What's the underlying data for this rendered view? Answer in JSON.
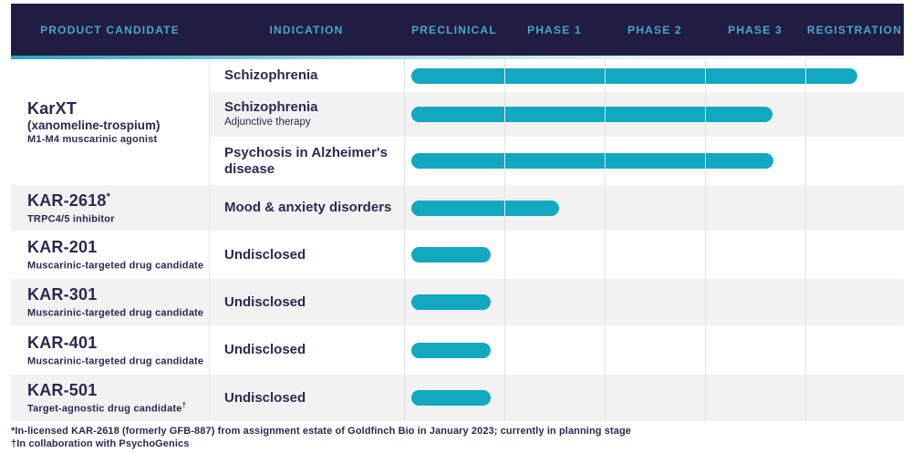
{
  "header": {
    "columns": [
      "PRODUCT CANDIDATE",
      "INDICATION",
      "PRECLINICAL",
      "PHASE 1",
      "PHASE 2",
      "PHASE 3",
      "REGISTRATION"
    ]
  },
  "colors": {
    "header_bg": "#211c41",
    "header_text": "#45a7cb",
    "bar_teal": "#12a8c0",
    "row_stripe": "#f2f2f3",
    "body_text": "#2b2950",
    "gridline": "#e3e3e6",
    "accent_gradient_start": "#2aa6bd"
  },
  "karxt": {
    "name": "KarXT",
    "sub1": "(xanomeline-trospium)",
    "sub2": "M1-M4 muscarinic agonist",
    "indications": [
      {
        "label": "Schizophrenia",
        "sub": "",
        "phase_reached": "Registration",
        "bar_pct": 89.2
      },
      {
        "label": "Schizophrenia",
        "sub": "Adjunctive therapy",
        "phase_reached": "Phase 3",
        "bar_pct": 72.3
      },
      {
        "label": "Psychosis in Alzheimer's disease",
        "sub": "",
        "phase_reached": "Phase 3",
        "bar_pct": 72.4
      }
    ]
  },
  "rows": [
    {
      "name": "KAR-2618",
      "sup": "*",
      "sub": "TRPC4/5 inhibitor",
      "sub_sup": "",
      "indication": "Mood & anxiety disorders",
      "phase_reached": "Phase 1",
      "bar_pct": 29.6
    },
    {
      "name": "KAR-201",
      "sup": "",
      "sub": "Muscarinic-targeted drug candidate",
      "sub_sup": "",
      "indication": "Undisclosed",
      "phase_reached": "Preclinical",
      "bar_pct": 15.9
    },
    {
      "name": "KAR-301",
      "sup": "",
      "sub": "Muscarinic-targeted drug candidate",
      "sub_sup": "",
      "indication": "Undisclosed",
      "phase_reached": "Preclinical",
      "bar_pct": 15.9
    },
    {
      "name": "KAR-401",
      "sup": "",
      "sub": "Muscarinic-targeted drug candidate",
      "sub_sup": "",
      "indication": "Undisclosed",
      "phase_reached": "Preclinical",
      "bar_pct": 15.9
    },
    {
      "name": "KAR-501",
      "sup": "",
      "sub": "Target-agnostic drug candidate",
      "sub_sup": "†",
      "indication": "Undisclosed",
      "phase_reached": "Preclinical",
      "bar_pct": 15.9
    }
  ],
  "footnotes": [
    "*In-licensed KAR-2618 (formerly GFB-887) from assignment estate of Goldfinch Bio in January 2023; currently in planning stage",
    "†In collaboration with PsychoGenics"
  ],
  "chart_data": {
    "type": "bar",
    "title": "Drug development pipeline",
    "stages": [
      "Preclinical",
      "Phase 1",
      "Phase 2",
      "Phase 3",
      "Registration"
    ],
    "legend_position": "none",
    "grid": "vertical",
    "rows": [
      {
        "product": "KarXT",
        "indication": "Schizophrenia",
        "progress_stage": "Registration",
        "timeline_pct": 89.2
      },
      {
        "product": "KarXT",
        "indication": "Schizophrenia (Adjunctive therapy)",
        "progress_stage": "Phase 3",
        "timeline_pct": 72.3
      },
      {
        "product": "KarXT",
        "indication": "Psychosis in Alzheimer's disease",
        "progress_stage": "Phase 3",
        "timeline_pct": 72.4
      },
      {
        "product": "KAR-2618",
        "indication": "Mood & anxiety disorders",
        "progress_stage": "Phase 1",
        "timeline_pct": 29.6
      },
      {
        "product": "KAR-201",
        "indication": "Undisclosed",
        "progress_stage": "Preclinical",
        "timeline_pct": 15.9
      },
      {
        "product": "KAR-301",
        "indication": "Undisclosed",
        "progress_stage": "Preclinical",
        "timeline_pct": 15.9
      },
      {
        "product": "KAR-401",
        "indication": "Undisclosed",
        "progress_stage": "Preclinical",
        "timeline_pct": 15.9
      },
      {
        "product": "KAR-501",
        "indication": "Undisclosed",
        "progress_stage": "Preclinical",
        "timeline_pct": 15.9
      }
    ]
  }
}
